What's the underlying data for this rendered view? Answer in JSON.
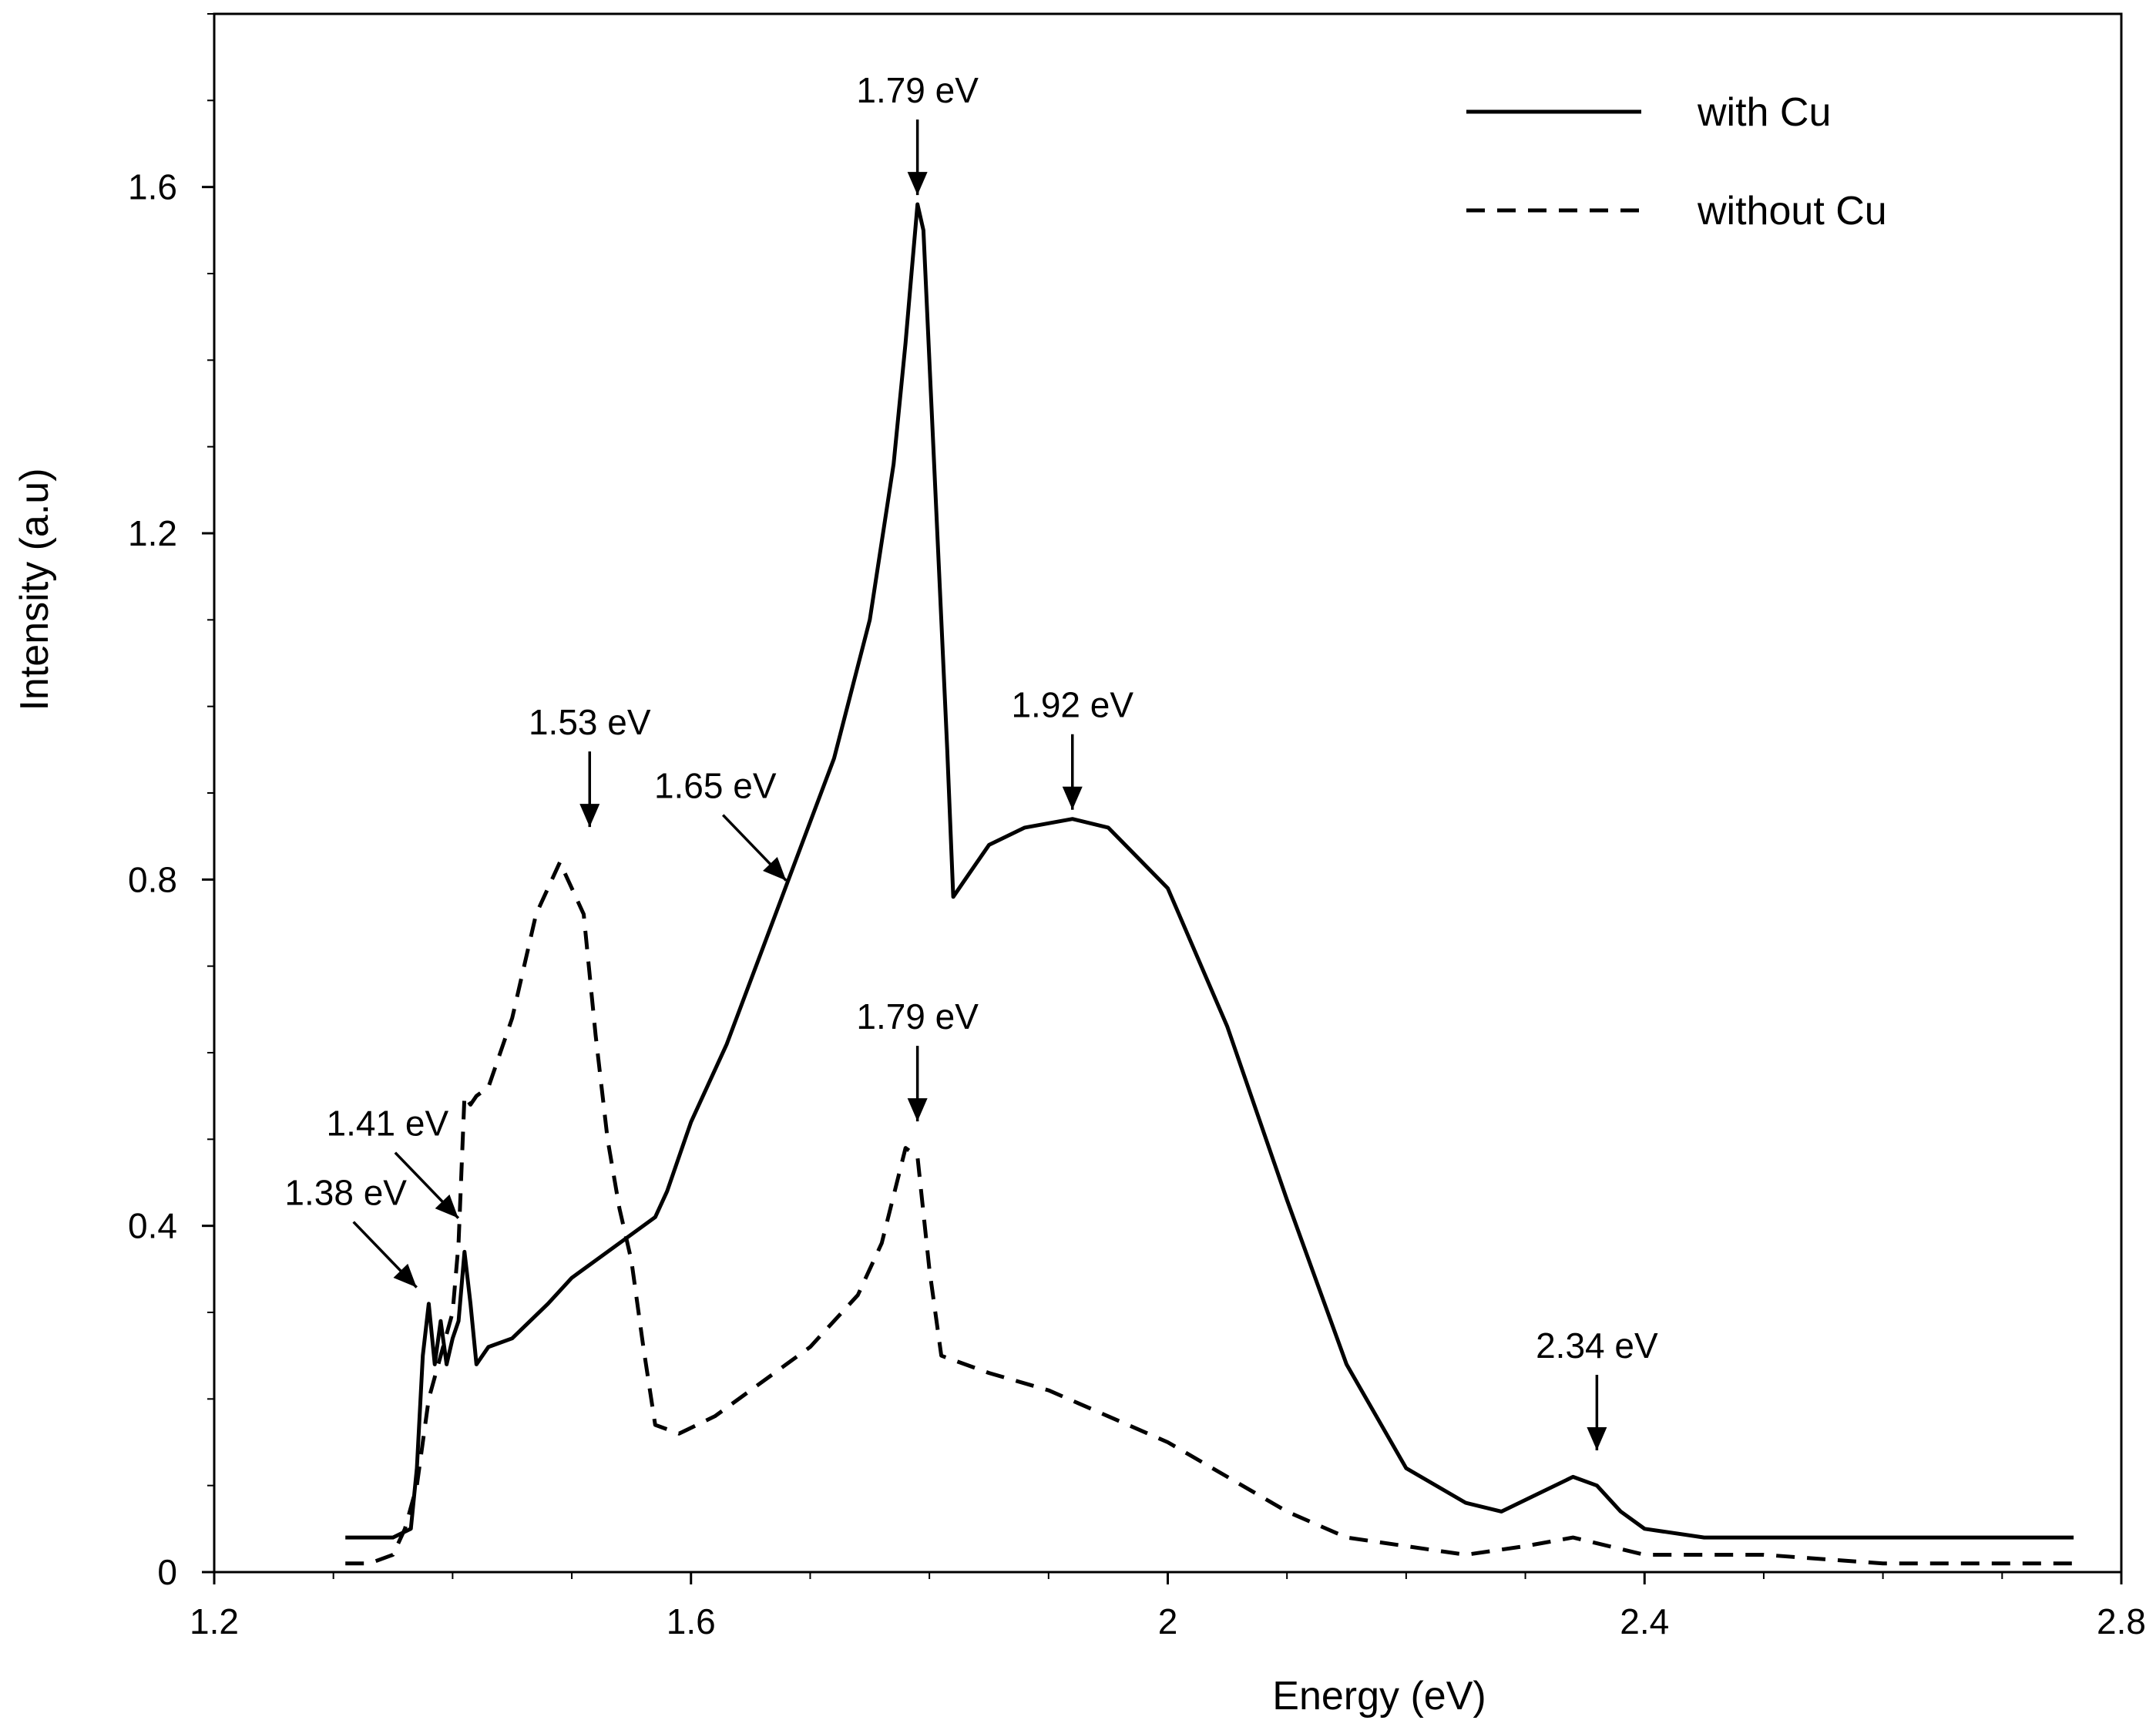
{
  "chart_data": {
    "type": "line",
    "title": "",
    "xlabel": "Energy  (eV)",
    "ylabel": "Intensity (a.u)",
    "xlim": [
      1.2,
      2.8
    ],
    "ylim": [
      0,
      1.8
    ],
    "xticks": [
      1.2,
      1.6,
      2.0,
      2.4,
      2.8
    ],
    "xtick_labels": [
      "1.2",
      "1.6",
      "2",
      "2.4",
      "2.8"
    ],
    "yticks": [
      0,
      0.4,
      0.8,
      1.2,
      1.6
    ],
    "ytick_labels": [
      "0",
      "0.4",
      "0.8",
      "1.2",
      "1.6"
    ],
    "grid": false,
    "legend": {
      "position": "top-right"
    },
    "series": [
      {
        "name": "with Cu",
        "style": "solid",
        "x": [
          1.31,
          1.35,
          1.365,
          1.37,
          1.375,
          1.38,
          1.385,
          1.39,
          1.395,
          1.4,
          1.405,
          1.41,
          1.415,
          1.42,
          1.43,
          1.45,
          1.48,
          1.5,
          1.52,
          1.55,
          1.57,
          1.58,
          1.6,
          1.63,
          1.66,
          1.69,
          1.72,
          1.75,
          1.77,
          1.78,
          1.785,
          1.79,
          1.795,
          1.8,
          1.81,
          1.815,
          1.82,
          1.83,
          1.85,
          1.88,
          1.92,
          1.95,
          2.0,
          2.05,
          2.1,
          2.15,
          2.2,
          2.25,
          2.28,
          2.31,
          2.34,
          2.36,
          2.38,
          2.4,
          2.45,
          2.5,
          2.6,
          2.7,
          2.76
        ],
        "values": [
          0.04,
          0.04,
          0.05,
          0.12,
          0.25,
          0.31,
          0.24,
          0.29,
          0.24,
          0.27,
          0.29,
          0.37,
          0.31,
          0.24,
          0.26,
          0.27,
          0.31,
          0.34,
          0.36,
          0.39,
          0.41,
          0.44,
          0.52,
          0.61,
          0.72,
          0.83,
          0.94,
          1.1,
          1.28,
          1.42,
          1.5,
          1.58,
          1.55,
          1.4,
          1.1,
          0.95,
          0.78,
          0.8,
          0.84,
          0.86,
          0.87,
          0.86,
          0.79,
          0.63,
          0.43,
          0.24,
          0.12,
          0.08,
          0.07,
          0.09,
          0.11,
          0.1,
          0.07,
          0.05,
          0.04,
          0.04,
          0.04,
          0.04,
          0.04
        ]
      },
      {
        "name": "without Cu",
        "style": "dashed",
        "x": [
          1.31,
          1.33,
          1.35,
          1.36,
          1.37,
          1.38,
          1.39,
          1.4,
          1.405,
          1.41,
          1.415,
          1.42,
          1.43,
          1.45,
          1.47,
          1.49,
          1.51,
          1.52,
          1.53,
          1.54,
          1.55,
          1.56,
          1.57,
          1.59,
          1.62,
          1.65,
          1.7,
          1.74,
          1.76,
          1.78,
          1.79,
          1.8,
          1.81,
          1.83,
          1.85,
          1.9,
          1.95,
          2.0,
          2.05,
          2.1,
          2.15,
          2.2,
          2.25,
          2.3,
          2.34,
          2.37,
          2.4,
          2.5,
          2.6,
          2.7,
          2.76
        ],
        "values": [
          0.01,
          0.01,
          0.02,
          0.05,
          0.1,
          0.2,
          0.25,
          0.3,
          0.38,
          0.55,
          0.54,
          0.55,
          0.56,
          0.64,
          0.76,
          0.82,
          0.76,
          0.62,
          0.5,
          0.42,
          0.36,
          0.26,
          0.17,
          0.16,
          0.18,
          0.21,
          0.26,
          0.32,
          0.38,
          0.49,
          0.48,
          0.35,
          0.25,
          0.24,
          0.23,
          0.21,
          0.18,
          0.15,
          0.11,
          0.07,
          0.04,
          0.03,
          0.02,
          0.03,
          0.04,
          0.03,
          0.02,
          0.02,
          0.01,
          0.01,
          0.01
        ]
      }
    ],
    "annotations": [
      {
        "text": "1.79 eV",
        "x": 1.79,
        "y": 1.58,
        "series": "with Cu",
        "style": "vertical"
      },
      {
        "text": "1.92 eV",
        "x": 1.92,
        "y": 0.87,
        "series": "with Cu",
        "style": "vertical"
      },
      {
        "text": "1.65 eV",
        "x": 1.685,
        "y": 0.79,
        "series": "with Cu",
        "style": "diagonal"
      },
      {
        "text": "1.53 eV",
        "x": 1.515,
        "y": 0.85,
        "series": "without Cu",
        "style": "vertical"
      },
      {
        "text": "1.41 eV",
        "x": 1.41,
        "y": 0.4,
        "series": "with Cu",
        "style": "diagonal"
      },
      {
        "text": "1.38 eV",
        "x": 1.375,
        "y": 0.32,
        "series": "with Cu",
        "style": "diagonal"
      },
      {
        "text": "1.79 eV",
        "x": 1.79,
        "y": 0.51,
        "series": "without Cu",
        "style": "vertical"
      },
      {
        "text": "2.34 eV",
        "x": 2.36,
        "y": 0.13,
        "series": "with Cu",
        "style": "vertical"
      }
    ]
  }
}
